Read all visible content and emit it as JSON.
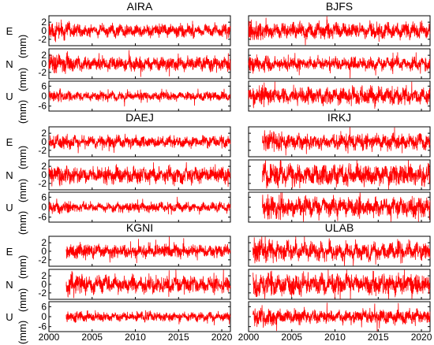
{
  "chart_data": {
    "type": "line",
    "x_ticks": [
      "2000",
      "2005",
      "2010",
      "2015",
      "2020"
    ],
    "xlim": [
      2000,
      2021
    ],
    "line_color": "#ff0000",
    "components": [
      {
        "label": "E",
        "unit": "(mm)",
        "ticks": [
          "2",
          "0",
          "-2"
        ],
        "ylim": [
          -3.5,
          3.5
        ]
      },
      {
        "label": "N",
        "unit": "(mm)",
        "ticks": [
          "2",
          "0",
          "-2"
        ],
        "ylim": [
          -3.5,
          3.5
        ]
      },
      {
        "label": "U",
        "unit": "(mm)",
        "ticks": [
          "6",
          "0",
          "-6"
        ],
        "ylim": [
          -9,
          9
        ]
      }
    ],
    "stations": [
      {
        "name": "AIRA",
        "start": 2000.0,
        "amplitude": {
          "E": 0.9,
          "N": 1.0,
          "U": 1.6
        }
      },
      {
        "name": "BJFS",
        "start": 2000.0,
        "amplitude": {
          "E": 1.1,
          "N": 0.9,
          "U": 3.0
        }
      },
      {
        "name": "DAEJ",
        "start": 2000.0,
        "amplitude": {
          "E": 0.8,
          "N": 1.1,
          "U": 1.7
        }
      },
      {
        "name": "IRKJ",
        "start": 2001.6,
        "amplitude": {
          "E": 1.1,
          "N": 1.5,
          "U": 3.6
        }
      },
      {
        "name": "KGNI",
        "start": 2002.0,
        "amplitude": {
          "E": 0.9,
          "N": 1.2,
          "U": 1.6
        }
      },
      {
        "name": "ULAB",
        "start": 2000.5,
        "amplitude": {
          "E": 1.3,
          "N": 1.5,
          "U": 2.6
        }
      }
    ]
  }
}
